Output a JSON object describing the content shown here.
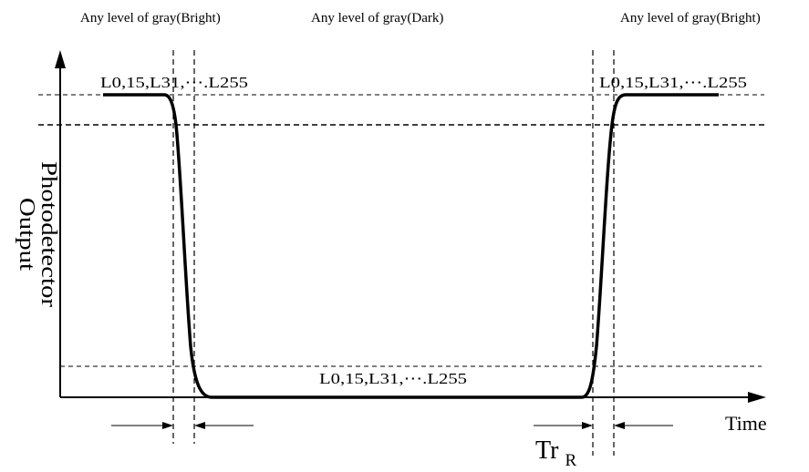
{
  "top_labels": {
    "left": "Any level of gray(Bright)",
    "middle": "Any level of gray(Dark)",
    "right": "Any level of gray(Bright)"
  },
  "level_labels": {
    "top_left": "L0,15,L31,⋯.L255",
    "top_right": "L0,15,L31,⋯.L255",
    "bottom": "L0,15,L31,⋯.L255"
  },
  "axes": {
    "y_label_line1": "Photodetector",
    "y_label_line2": "Output",
    "x_label": "Time"
  },
  "timing_label": {
    "main": "Tr",
    "subscript": "R"
  },
  "colors": {
    "stroke": "#000000",
    "background": "#ffffff"
  }
}
